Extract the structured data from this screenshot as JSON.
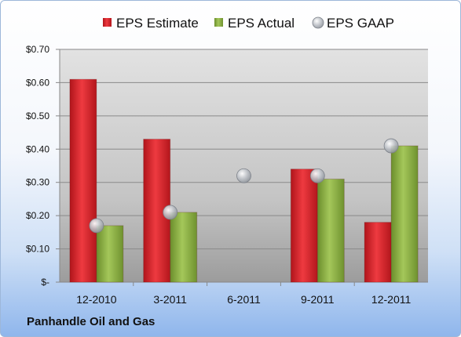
{
  "company": "Panhandle Oil and Gas",
  "chart_data": {
    "type": "bar",
    "categories": [
      "12-2010",
      "3-2011",
      "6-2011",
      "9-2011",
      "12-2011"
    ],
    "series": [
      {
        "name": "EPS Estimate",
        "kind": "bar",
        "color": "#d42027",
        "values": [
          0.61,
          0.43,
          null,
          0.34,
          0.18
        ]
      },
      {
        "name": "EPS Actual",
        "kind": "bar",
        "color": "#8cb43e",
        "values": [
          0.17,
          0.21,
          null,
          0.31,
          0.41
        ]
      },
      {
        "name": "EPS GAAP",
        "kind": "marker",
        "color": "#b8bcc4",
        "values": [
          0.17,
          0.21,
          0.32,
          0.32,
          0.41
        ]
      }
    ],
    "yticks": [
      "$-",
      "$0.10",
      "$0.20",
      "$0.30",
      "$0.40",
      "$0.50",
      "$0.60",
      "$0.70"
    ],
    "ylim": [
      0,
      0.7
    ],
    "grid": true,
    "legend": "top"
  }
}
